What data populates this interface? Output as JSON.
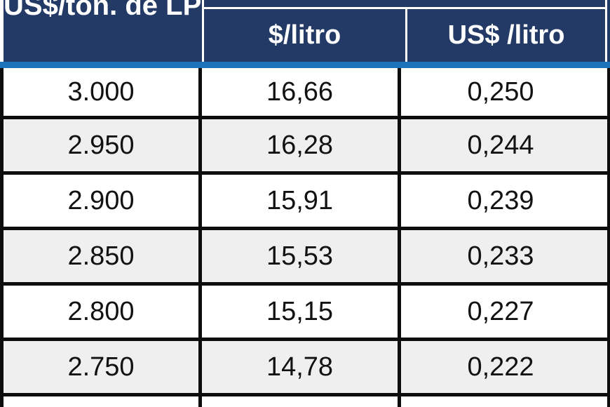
{
  "colors": {
    "header_navy": "#233A66",
    "accent_blue": "#1B72B8",
    "row_alt_gray": "#EFEFEF",
    "border_black": "#0D0D0D",
    "header_text": "#FFFFFF",
    "cell_text": "#121212"
  },
  "chart_data": {
    "type": "table",
    "columns": [
      "US$/ton. de LPE",
      "$/litro",
      "US$ /litro"
    ],
    "rows": [
      [
        "3.000",
        "16,66",
        "0,250"
      ],
      [
        "2.950",
        "16,28",
        "0,244"
      ],
      [
        "2.900",
        "15,91",
        "0,239"
      ],
      [
        "2.850",
        "15,53",
        "0,233"
      ],
      [
        "2.800",
        "15,15",
        "0,227"
      ],
      [
        "2.750",
        "14,78",
        "0,222"
      ]
    ],
    "layout": {
      "header_row_cut_off_at_top": true,
      "partial_empty_row_at_bottom": true,
      "zebra_striping": true,
      "grid": "thick black borders"
    }
  }
}
